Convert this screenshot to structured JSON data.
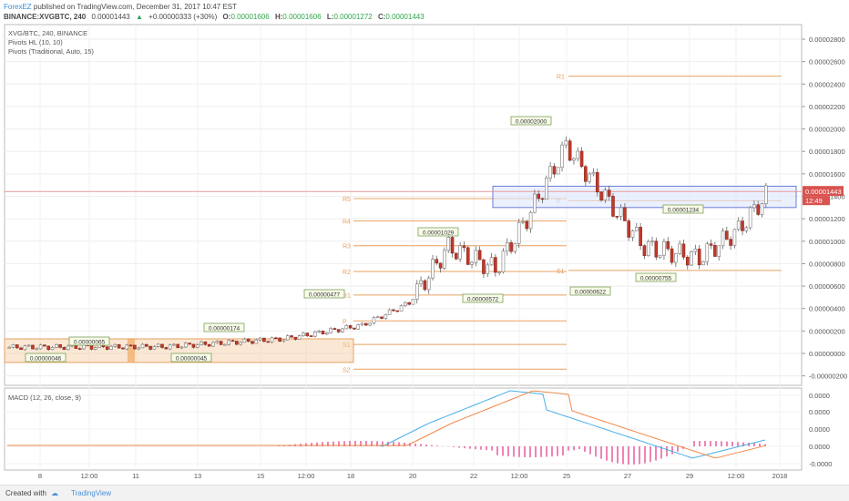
{
  "header": {
    "author": "ForexEZ",
    "published": "published on TradingView.com, December 31, 2017 10:47 EST",
    "symbol": "BINANCE:XVGBTC, 240",
    "last": "0.00001443",
    "change_arrow": "▲",
    "change": "+0.00000333 (+30%)",
    "o_label": "O:",
    "o_val": "0.00001606",
    "h_label": "H:",
    "h_val": "0.00001606",
    "l_label": "L:",
    "l_val": "0.00001272",
    "c_label": "C:",
    "c_val": "0.00001443"
  },
  "overlay": {
    "pair": "XVG/BTC, 240, BINANCE",
    "pivots_hl": "Pivots HL (10, 10)",
    "pivots_trad": "Pivots (Traditional, Auto, 15)"
  },
  "macd_label": "MACD (12, 26, close, 9)",
  "footer": {
    "created": "Created with",
    "brand": "TradingView"
  },
  "colors": {
    "up": "#ffffff",
    "down": "#c0392b",
    "pivot": "#e8a060",
    "macd": "#4ab0e8",
    "signal": "#f0884a",
    "hist": "#e85a9a"
  },
  "chart_data": {
    "type": "candlestick",
    "y_ticks": [
      "0.00002800",
      "0.00002600",
      "0.00002400",
      "0.00002200",
      "0.00002000",
      "0.00001800",
      "0.00001600",
      "0.00001400",
      "0.00001200",
      "0.00001000",
      "0.00000800",
      "0.00000600",
      "0.00000400",
      "0.00000200",
      "0.00000000",
      "-0.00000200"
    ],
    "y_tick_values": [
      2.8e-05,
      2.6e-05,
      2.4e-05,
      2.2e-05,
      2e-05,
      1.8e-05,
      1.6e-05,
      1.4e-05,
      1.2e-05,
      1e-05,
      8e-06,
      6e-06,
      4e-06,
      2e-06,
      0,
      -2e-06
    ],
    "x_ticks": [
      "8",
      "12:00",
      "11",
      "13",
      "15",
      "12:00",
      "18",
      "20",
      "22",
      "12:00",
      "25",
      "27",
      "29",
      "12:00",
      "2018"
    ],
    "current_price": "0.00001443",
    "countdown": "12:49",
    "pivot_levels_1": [
      {
        "label": "R5",
        "value": 1.38e-05
      },
      {
        "label": "R4",
        "value": 1.18e-05
      },
      {
        "label": "R3",
        "value": 9.6e-06
      },
      {
        "label": "R2",
        "value": 7.3e-06
      },
      {
        "label": "R1",
        "value": 5.2e-06
      },
      {
        "label": "P",
        "value": 2.9e-06
      },
      {
        "label": "S1",
        "value": 8e-07
      },
      {
        "label": "S2",
        "value": -1.4e-06
      }
    ],
    "pivot_levels_2": [
      {
        "label": "R1",
        "value": 2.47e-05
      },
      {
        "label": "P",
        "value": 1.36e-05
      },
      {
        "label": "S1",
        "value": 7.4e-06
      }
    ],
    "annotations": [
      {
        "text": "0.00000065",
        "price": 6.5e-07
      },
      {
        "text": "0.00000046",
        "price": 4.6e-07
      },
      {
        "text": "0.00000045",
        "price": 4.5e-07
      },
      {
        "text": "0.00000174",
        "price": 1.74e-06
      },
      {
        "text": "0.00000477",
        "price": 4.77e-06
      },
      {
        "text": "0.00001029",
        "price": 1.029e-05
      },
      {
        "text": "0.00000572",
        "price": 5.72e-06
      },
      {
        "text": "0.00002000",
        "price": 2e-05
      },
      {
        "text": "0.00000622",
        "price": 6.22e-06
      },
      {
        "text": "0.00001234",
        "price": 1.234e-05
      },
      {
        "text": "0.00000755",
        "price": 7.55e-06
      }
    ],
    "macd_ticks": [
      "0.0000",
      "0.0000",
      "0.0000",
      "0.0000",
      "-0.0000"
    ]
  }
}
